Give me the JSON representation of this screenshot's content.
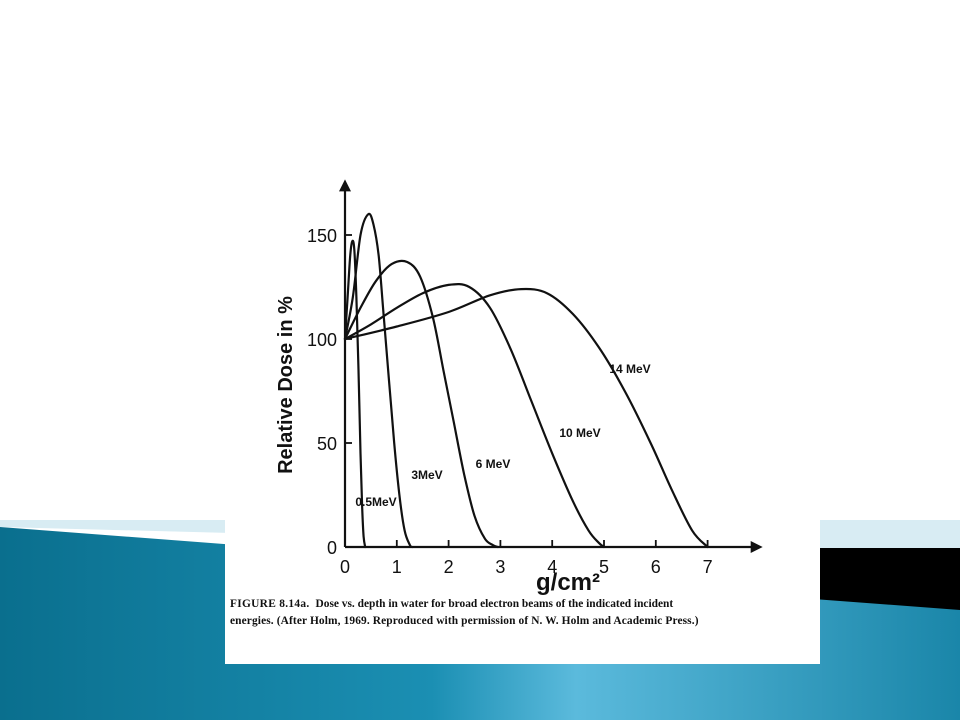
{
  "theme": {
    "slide_background": "#ffffff",
    "band_dark": "#0a6f8e",
    "band_light": "#5bbadc",
    "band_pale": "#d8ecf3",
    "black_bar": "#000000",
    "ink": "#111111"
  },
  "caption": {
    "figure_label": "FIGURE 8.14a.",
    "line1": "Dose vs. depth in water for broad electron beams of the indicated incident",
    "line2": "energies. (After Holm, 1969. Reproduced with permission of N. W. Holm and Academic Press.)"
  },
  "chart_data": {
    "type": "line",
    "title": "",
    "xlabel": "g/cm²",
    "ylabel": "Relative Dose in %",
    "xlim": [
      0,
      7.6
    ],
    "ylim": [
      0,
      170
    ],
    "xticks": [
      0,
      1,
      2,
      3,
      4,
      5,
      6,
      7
    ],
    "yticks": [
      0,
      50,
      100,
      150
    ],
    "grid": false,
    "series": [
      {
        "name": "0.5 MeV",
        "label": "0.5MeV",
        "x": [
          0,
          0.05,
          0.1,
          0.14,
          0.18,
          0.22,
          0.26,
          0.3,
          0.33,
          0.36,
          0.39
        ],
        "y": [
          100,
          120,
          140,
          147,
          143,
          120,
          85,
          45,
          20,
          5,
          0
        ]
      },
      {
        "name": "3 MeV",
        "label": "3MeV",
        "x": [
          0,
          0.15,
          0.3,
          0.45,
          0.55,
          0.65,
          0.75,
          0.85,
          0.95,
          1.05,
          1.15,
          1.25,
          1.3
        ],
        "y": [
          100,
          120,
          150,
          160,
          155,
          140,
          110,
          80,
          50,
          25,
          8,
          1,
          0
        ]
      },
      {
        "name": "6 MeV",
        "label": "6 MeV",
        "x": [
          0,
          0.3,
          0.6,
          0.9,
          1.2,
          1.45,
          1.7,
          1.9,
          2.1,
          2.3,
          2.5,
          2.7,
          2.85,
          2.95
        ],
        "y": [
          100,
          115,
          128,
          136,
          137,
          130,
          110,
          85,
          60,
          35,
          15,
          4,
          1,
          0
        ]
      },
      {
        "name": "10 MeV",
        "label": "10 MeV",
        "x": [
          0,
          0.5,
          1.0,
          1.5,
          2.0,
          2.4,
          2.8,
          3.2,
          3.6,
          4.0,
          4.4,
          4.7,
          4.9,
          5.0
        ],
        "y": [
          100,
          107,
          115,
          122,
          126,
          125,
          115,
          95,
          70,
          45,
          22,
          8,
          2,
          0
        ]
      },
      {
        "name": "14 MeV",
        "label": "14 MeV",
        "x": [
          0,
          1.0,
          2.0,
          2.8,
          3.4,
          3.9,
          4.4,
          4.9,
          5.4,
          5.9,
          6.3,
          6.7,
          7.0
        ],
        "y": [
          100,
          106,
          113,
          121,
          124,
          122,
          112,
          96,
          75,
          50,
          28,
          8,
          0
        ]
      }
    ]
  }
}
